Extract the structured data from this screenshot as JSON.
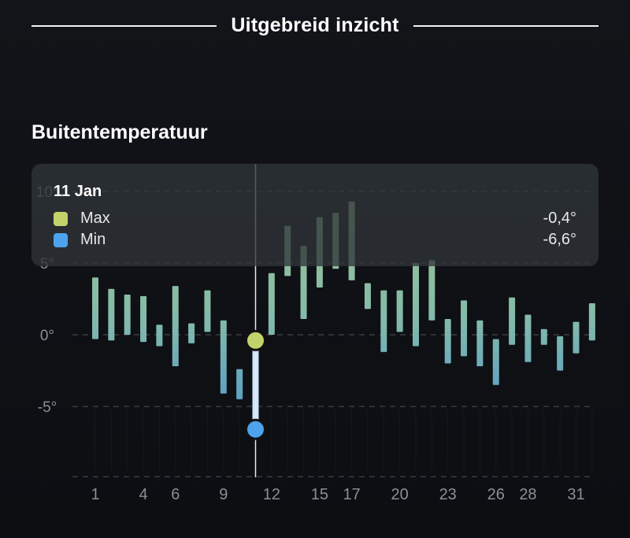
{
  "header": {
    "title": "Uitgebreid inzicht"
  },
  "chart_data": {
    "type": "floating-bar",
    "title": "Buitentemperatuur",
    "y_ticks": [
      {
        "value": 10,
        "label": "10°"
      },
      {
        "value": 5,
        "label": "5°"
      },
      {
        "value": 0,
        "label": "0°"
      },
      {
        "value": -5,
        "label": "-5°"
      }
    ],
    "ylim": [
      -10,
      10.5
    ],
    "x_ticks": [
      1,
      4,
      6,
      9,
      12,
      15,
      17,
      20,
      23,
      26,
      28,
      31
    ],
    "x_unit": "day of January",
    "series": [
      {
        "name": "Max",
        "color": "#c3d36b"
      },
      {
        "name": "Min",
        "color": "#4da3ee"
      }
    ],
    "days": [
      {
        "day": 1,
        "max": 4.0,
        "min": -0.3
      },
      {
        "day": 2,
        "max": 3.2,
        "min": -0.4
      },
      {
        "day": 3,
        "max": 2.8,
        "min": 0.0
      },
      {
        "day": 4,
        "max": 2.7,
        "min": -0.5
      },
      {
        "day": 5,
        "max": 0.7,
        "min": -0.8
      },
      {
        "day": 6,
        "max": 3.4,
        "min": -2.2
      },
      {
        "day": 7,
        "max": 0.8,
        "min": -0.6
      },
      {
        "day": 8,
        "max": 3.1,
        "min": 0.2
      },
      {
        "day": 9,
        "max": 1.0,
        "min": -4.1
      },
      {
        "day": 10,
        "max": -2.4,
        "min": -4.5
      },
      {
        "day": 11,
        "max": -0.4,
        "min": -6.6
      },
      {
        "day": 12,
        "max": 4.3,
        "min": 0.0
      },
      {
        "day": 13,
        "max": 7.6,
        "min": 4.1
      },
      {
        "day": 14,
        "max": 6.2,
        "min": 1.1
      },
      {
        "day": 15,
        "max": 8.2,
        "min": 3.3
      },
      {
        "day": 16,
        "max": 8.5,
        "min": 4.6
      },
      {
        "day": 17,
        "max": 9.3,
        "min": 3.8
      },
      {
        "day": 18,
        "max": 3.6,
        "min": 1.8
      },
      {
        "day": 19,
        "max": 3.1,
        "min": -1.2
      },
      {
        "day": 20,
        "max": 3.1,
        "min": 0.2
      },
      {
        "day": 21,
        "max": 5.0,
        "min": -0.8
      },
      {
        "day": 22,
        "max": 5.2,
        "min": 1.0
      },
      {
        "day": 23,
        "max": 1.1,
        "min": -2.0
      },
      {
        "day": 24,
        "max": 2.4,
        "min": -1.5
      },
      {
        "day": 25,
        "max": 1.0,
        "min": -2.2
      },
      {
        "day": 26,
        "max": -0.3,
        "min": -3.5
      },
      {
        "day": 27,
        "max": 2.6,
        "min": -0.7
      },
      {
        "day": 28,
        "max": 1.4,
        "min": -1.9
      },
      {
        "day": 29,
        "max": 0.4,
        "min": -0.7
      },
      {
        "day": 30,
        "max": -0.1,
        "min": -2.5
      },
      {
        "day": 31,
        "max": 0.9,
        "min": -1.3
      },
      {
        "day": 32,
        "max": 2.2,
        "min": -0.4
      }
    ],
    "selected_day": 11
  },
  "tooltip": {
    "date": "11 Jan",
    "max_label": "Max",
    "max_value": "-0,4°",
    "min_label": "Min",
    "min_value": "-6,6°"
  }
}
